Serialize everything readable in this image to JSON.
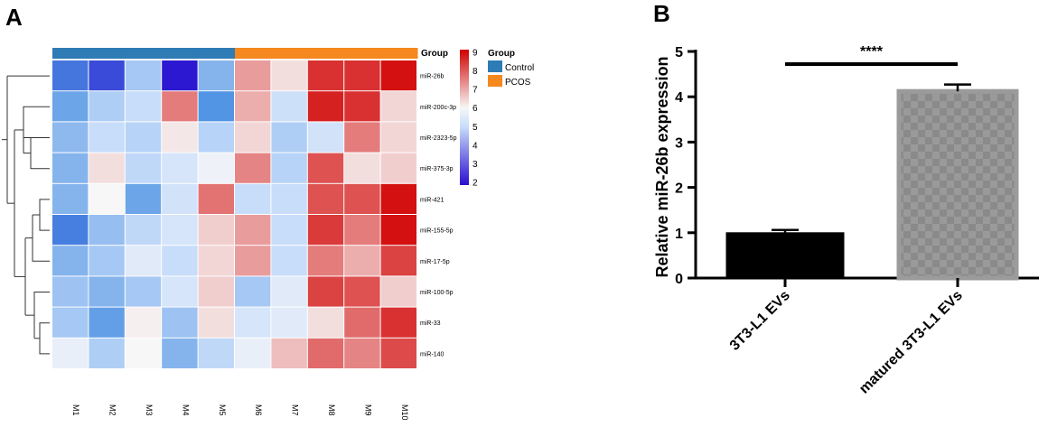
{
  "panel_labels": {
    "a": "A",
    "b": "B"
  },
  "chart_data": [
    {
      "type": "heatmap",
      "title": "",
      "columns": [
        "M1",
        "M2",
        "M3",
        "M4",
        "M5",
        "M6",
        "M7",
        "M8",
        "M9",
        "M10"
      ],
      "rows": [
        "miR-26b",
        "miR-200c-3p",
        "miR-2323-5p",
        "miR-375-3p",
        "miR-421",
        "miR-155-5p",
        "miR-17-5p",
        "miR-100-5p",
        "miR-33",
        "miR-140"
      ],
      "group_label": "Group",
      "groups": [
        "Control",
        "Control",
        "Control",
        "Control",
        "Control",
        "PCOS",
        "PCOS",
        "PCOS",
        "PCOS",
        "PCOS"
      ],
      "legend": {
        "title": "Group",
        "items": [
          {
            "name": "Control",
            "color": "#2f7bb6"
          },
          {
            "name": "PCOS",
            "color": "#f5881f"
          }
        ]
      },
      "colorbar": {
        "min": 2,
        "max": 9,
        "ticks": [
          "9",
          "8",
          "7",
          "6",
          "5",
          "4",
          "3",
          "2"
        ],
        "low_color": "#2a0fd0",
        "mid_color": "#f7f7f7",
        "high_color": "#d10000"
      },
      "values": [
        [
          3.2,
          2.7,
          4.6,
          2.1,
          4.2,
          7.1,
          6.3,
          8.4,
          8.4,
          8.8
        ],
        [
          3.9,
          4.7,
          5.0,
          7.5,
          3.6,
          6.9,
          5.1,
          8.6,
          8.4,
          6.4
        ],
        [
          4.3,
          5.0,
          4.8,
          6.2,
          4.8,
          6.4,
          4.7,
          5.2,
          7.5,
          6.4
        ],
        [
          4.2,
          6.3,
          4.9,
          5.3,
          5.8,
          7.4,
          4.8,
          8.0,
          6.3,
          6.5
        ],
        [
          4.2,
          6.0,
          3.9,
          5.2,
          7.6,
          5.0,
          5.0,
          8.0,
          8.0,
          8.8
        ],
        [
          3.3,
          4.4,
          4.9,
          5.3,
          6.5,
          7.1,
          5.0,
          8.3,
          7.5,
          8.8
        ],
        [
          4.2,
          4.6,
          5.5,
          5.0,
          6.4,
          7.1,
          5.0,
          7.5,
          6.9,
          8.2
        ],
        [
          4.5,
          4.2,
          4.6,
          5.3,
          6.5,
          4.6,
          5.5,
          8.2,
          8.0,
          6.5
        ],
        [
          4.6,
          3.8,
          6.1,
          4.5,
          6.3,
          5.3,
          5.5,
          6.3,
          7.7,
          8.4
        ],
        [
          5.7,
          4.7,
          6.0,
          4.2,
          4.9,
          5.7,
          6.7,
          7.7,
          7.4,
          8.1
        ]
      ],
      "dendrogram": "row clustering tree on left"
    },
    {
      "type": "bar",
      "title": "",
      "categories": [
        "3T3-L1 EVs",
        "matured 3T3-L1 EVs"
      ],
      "values": [
        1.0,
        4.12
      ],
      "errors": [
        0.06,
        0.15
      ],
      "ylabel": "Relative miR-26b expression",
      "xlabel": "",
      "ylim": [
        0,
        5
      ],
      "yticks": [
        "0",
        "1",
        "2",
        "3",
        "4",
        "5"
      ],
      "significance": "****",
      "colors": [
        "#000000",
        "#8c8c8c"
      ]
    }
  ]
}
